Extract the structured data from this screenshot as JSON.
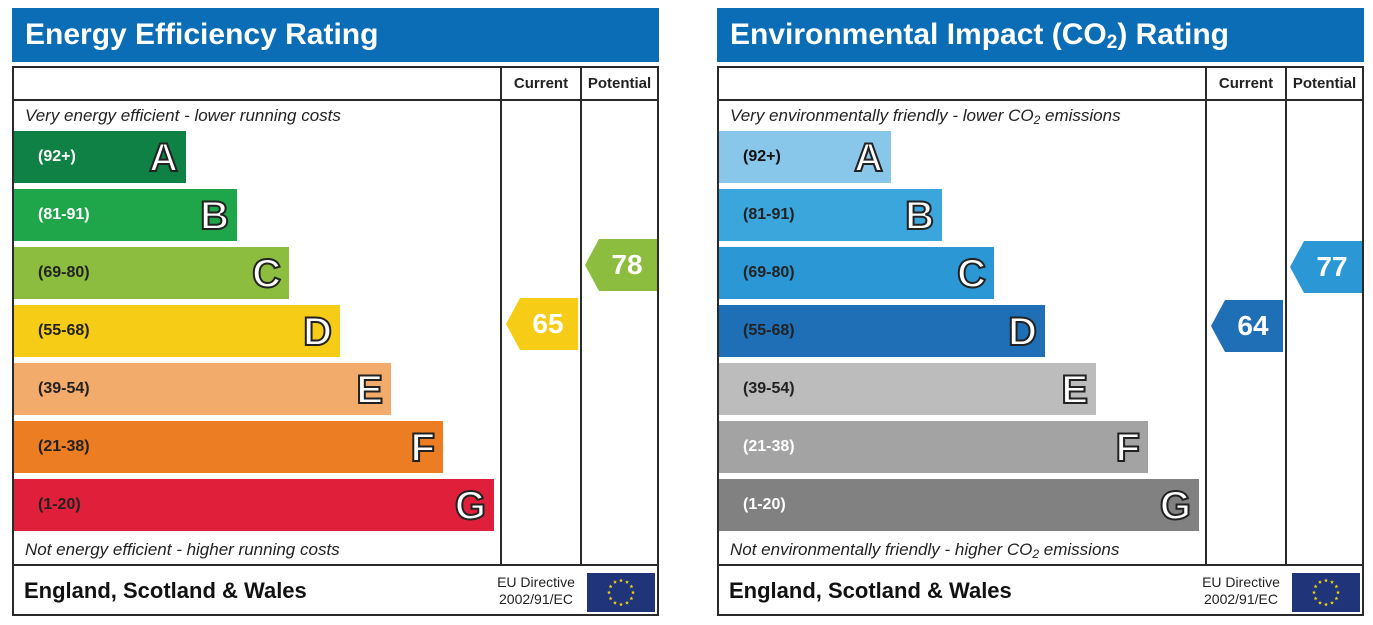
{
  "chart_data": [
    {
      "type": "bar",
      "title": "Energy Efficiency Rating",
      "column_headers": [
        "Current",
        "Potential"
      ],
      "top_caption": "Very energy efficient - lower running costs",
      "bottom_caption": "Not energy efficient - higher running costs",
      "bands": [
        {
          "letter": "A",
          "range": "(92+)",
          "color": "#0f8144",
          "text_color": "#ffffff"
        },
        {
          "letter": "B",
          "range": "(81-91)",
          "color": "#1fa54a",
          "text_color": "#ffffff"
        },
        {
          "letter": "C",
          "range": "(69-80)",
          "color": "#8cbd3f",
          "text_color": "#222222"
        },
        {
          "letter": "D",
          "range": "(55-68)",
          "color": "#f7cc16",
          "text_color": "#222222"
        },
        {
          "letter": "E",
          "range": "(39-54)",
          "color": "#f2ab6a",
          "text_color": "#222222"
        },
        {
          "letter": "F",
          "range": "(21-38)",
          "color": "#ec7d22",
          "text_color": "#222222"
        },
        {
          "letter": "G",
          "range": "(1-20)",
          "color": "#e0203b",
          "text_color": "#222222"
        }
      ],
      "current": {
        "value": 65,
        "label": "65",
        "color": "#f7cc16"
      },
      "potential": {
        "value": 78,
        "label": "78",
        "color": "#8cbd3f"
      },
      "footer": {
        "country": "England, Scotland & Wales",
        "directive_line1": "EU Directive",
        "directive_line2": "2002/91/EC"
      }
    },
    {
      "type": "bar",
      "title_main": "Environmental Impact (CO",
      "title_sub": "2",
      "title_end": ") Rating",
      "column_headers": [
        "Current",
        "Potential"
      ],
      "top_caption_main": "Very environmentally friendly - lower CO",
      "top_caption_sub": "2",
      "top_caption_end": " emissions",
      "bottom_caption_main": "Not environmentally friendly - higher CO",
      "bottom_caption_sub": "2",
      "bottom_caption_end": " emissions",
      "bands": [
        {
          "letter": "A",
          "range": "(92+)",
          "color": "#88c6ea",
          "text_color": "#111111"
        },
        {
          "letter": "B",
          "range": "(81-91)",
          "color": "#3aa6dc",
          "text_color": "#222222"
        },
        {
          "letter": "C",
          "range": "(69-80)",
          "color": "#2b97d4",
          "text_color": "#222222"
        },
        {
          "letter": "D",
          "range": "(55-68)",
          "color": "#1f6fb6",
          "text_color": "#222222"
        },
        {
          "letter": "E",
          "range": "(39-54)",
          "color": "#bcbcbc",
          "text_color": "#222222"
        },
        {
          "letter": "F",
          "range": "(21-38)",
          "color": "#a3a3a3",
          "text_color": "#ffffff"
        },
        {
          "letter": "G",
          "range": "(1-20)",
          "color": "#818181",
          "text_color": "#ffffff"
        }
      ],
      "current": {
        "value": 64,
        "label": "64",
        "color": "#1f6fb6"
      },
      "potential": {
        "value": 77,
        "label": "77",
        "color": "#2b97d4"
      },
      "footer": {
        "country": "England, Scotland & Wales",
        "directive_line1": "EU Directive",
        "directive_line2": "2002/91/EC"
      }
    }
  ]
}
